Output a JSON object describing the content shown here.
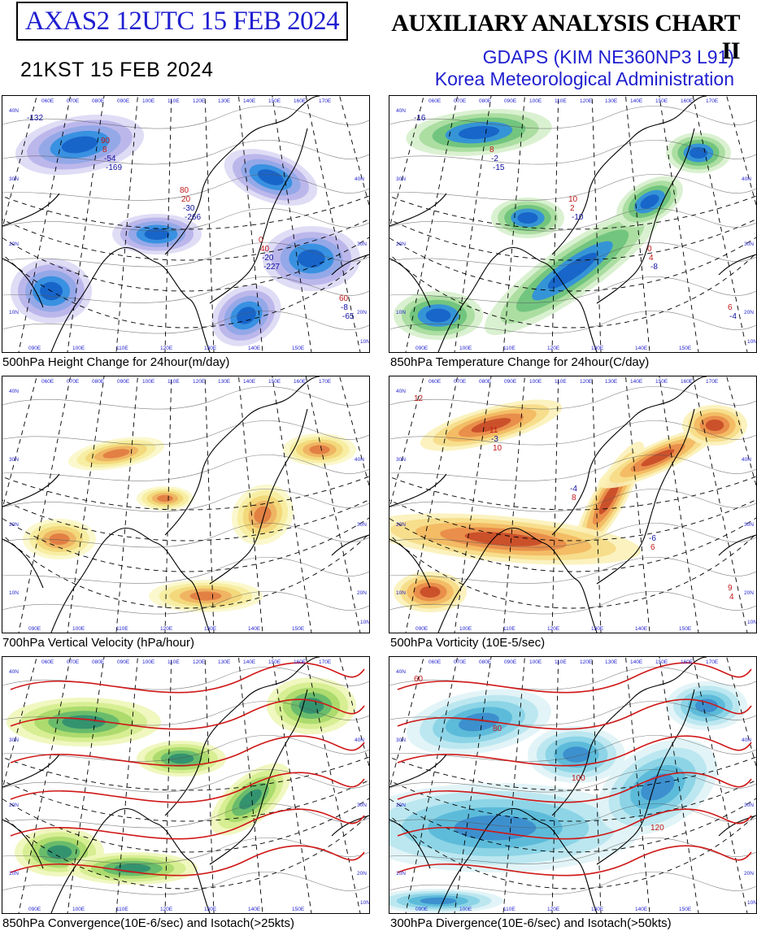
{
  "header": {
    "product_id_label": "AXAS2  12UTC 15 FEB 2024",
    "local_time": "21KST 15 FEB 2024",
    "chart_title": "AUXILIARY ANALYSIS CHART II",
    "model": "GDAPS (KIM NE360NP3 L91)",
    "agency": "Korea Meteorological Administration"
  },
  "panels": [
    {
      "id": "p500hgt",
      "caption": "500hPa Height Change for 24hour(m/day)",
      "fill_scheme": "blue-purple",
      "labels": [
        "-132",
        "-169",
        "-266",
        "-227",
        "-65",
        "-54",
        "-30",
        "-20",
        "-8",
        "8",
        "20",
        "40",
        "60",
        "90",
        "80",
        "0"
      ]
    },
    {
      "id": "p850t",
      "caption": "850hPa Temperature Change for 24hour(C/day)",
      "fill_scheme": "green-blue",
      "labels": [
        "-16",
        "-15",
        "-10",
        "-8",
        "-4",
        "-2",
        "2",
        "4",
        "6",
        "8",
        "10",
        "0"
      ]
    },
    {
      "id": "p700w",
      "caption": "700hPa Vertical Velocity (hPa/hour)",
      "fill_scheme": "yellow-orange",
      "labels": []
    },
    {
      "id": "p500vort",
      "caption": "500hPa Vorticity (10E-5/sec)",
      "fill_scheme": "yellow-orange-red",
      "labels": [
        "12",
        "10",
        "8",
        "6",
        "4",
        "-3",
        "-4",
        "-6",
        "9",
        "11"
      ]
    },
    {
      "id": "p850conv",
      "caption": "850hPa Convergence(10E-6/sec) and Isotach(>25kts)",
      "fill_scheme": "yellow-green",
      "labels": []
    },
    {
      "id": "p300div",
      "caption": "300hPa Divergence(10E-6/sec) and Isotach(>50kts)",
      "fill_scheme": "cyan-blue",
      "labels": [
        "60",
        "80",
        "100",
        "120"
      ]
    }
  ],
  "map_grid": {
    "top_longitude_labels": [
      "060E",
      "070E",
      "080E",
      "090E",
      "100E",
      "110E",
      "120E",
      "130E",
      "140E",
      "150E",
      "160E",
      "170E"
    ],
    "bottom_longitude_labels": [
      "090E",
      "100E",
      "110E",
      "120E",
      "130E",
      "140E",
      "150E"
    ],
    "latitude_labels_left": [
      "40N",
      "30N",
      "20N",
      "10N"
    ],
    "latitude_labels_right": [
      "40N",
      "30N",
      "20N",
      "10N"
    ]
  }
}
